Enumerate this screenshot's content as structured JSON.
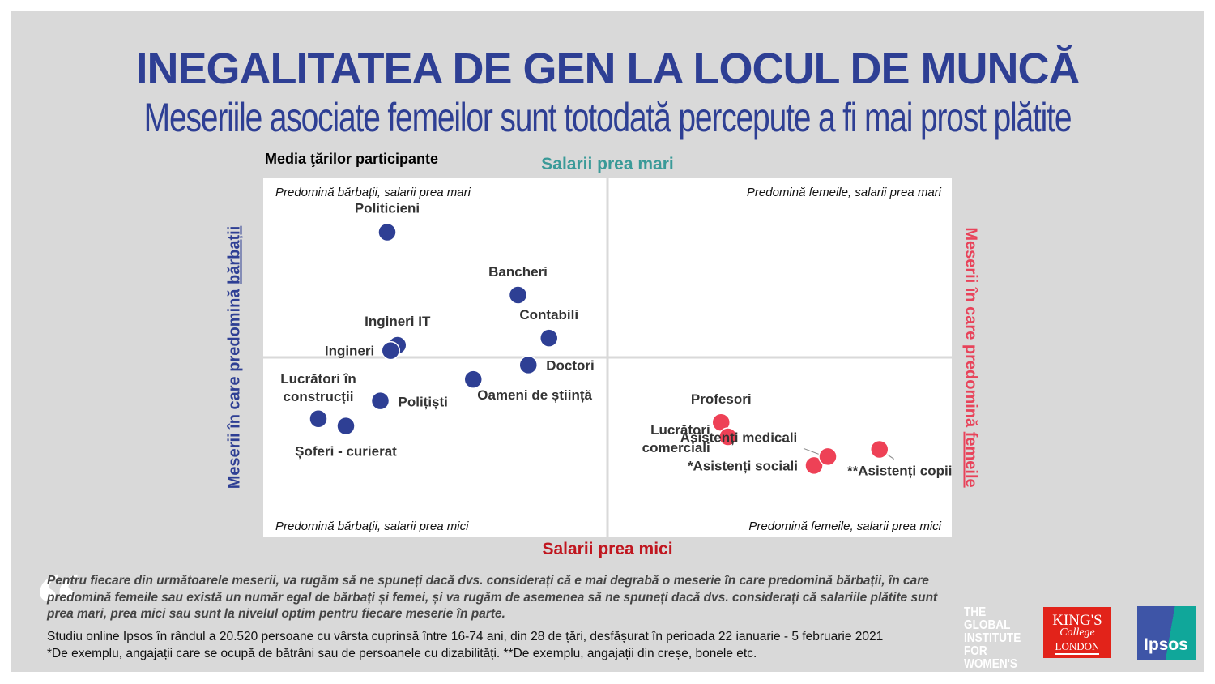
{
  "header": {
    "title": "INEGALITATEA DE GEN LA LOCUL DE MUNCĂ",
    "subtitle": "Meseriile asociate femeilor sunt totodată percepute a fi mai prost plătite"
  },
  "chart_data": {
    "type": "scatter",
    "title": "Media ţărilor participante",
    "xlabel_left": "Meserii în care predomină",
    "xlabel_left_emph": "bărbații",
    "xlabel_right": "Meserii în care predomină",
    "xlabel_right_emph": "femeile",
    "ylabel_top": "Salarii prea mari",
    "ylabel_bottom": "Salarii prea mici",
    "xlim": [
      -1,
      1
    ],
    "ylim": [
      -1,
      1
    ],
    "grid": false,
    "quadrants": {
      "top_left": "Predomină bărbații, salarii prea mari",
      "top_right": "Predomină femeile, salarii prea mari",
      "bottom_left": "Predomină bărbații, salarii prea mici",
      "bottom_right": "Predomină femeile, salarii prea mici"
    },
    "colors": {
      "male": "#2e3f94",
      "female": "#ee4156"
    },
    "points": [
      {
        "label": "Politicieni",
        "x": -0.64,
        "y": 0.7,
        "group": "male"
      },
      {
        "label": "Bancheri",
        "x": -0.26,
        "y": 0.35,
        "group": "male"
      },
      {
        "label": "Contabili",
        "x": -0.17,
        "y": 0.11,
        "group": "male"
      },
      {
        "label": "Ingineri IT",
        "x": -0.61,
        "y": 0.07,
        "group": "male"
      },
      {
        "label": "Ingineri",
        "x": -0.63,
        "y": 0.04,
        "group": "male"
      },
      {
        "label": "Doctori",
        "x": -0.23,
        "y": -0.04,
        "group": "male"
      },
      {
        "label": "Oameni de știință",
        "x": -0.39,
        "y": -0.12,
        "group": "male"
      },
      {
        "label": "Polițiști",
        "x": -0.66,
        "y": -0.24,
        "group": "male"
      },
      {
        "label": "Lucrători în construcții",
        "x": -0.84,
        "y": -0.34,
        "group": "male"
      },
      {
        "label": "Șoferi - curierat",
        "x": -0.76,
        "y": -0.38,
        "group": "male"
      },
      {
        "label": "Profesori",
        "x": 0.33,
        "y": -0.36,
        "group": "female"
      },
      {
        "label": "Lucrători comerciali",
        "x": 0.35,
        "y": -0.44,
        "group": "female"
      },
      {
        "label": "*Asistenți sociali",
        "x": 0.6,
        "y": -0.6,
        "group": "female"
      },
      {
        "label": "Asistenți medicali",
        "x": 0.64,
        "y": -0.55,
        "group": "female"
      },
      {
        "label": "**Asistenți copii",
        "x": 0.79,
        "y": -0.51,
        "group": "female"
      }
    ]
  },
  "footer": {
    "question": "Pentru fiecare din următoarele meserii, va rugăm să ne spuneți dacă dvs. considerați că e mai degrabă o meserie în care predomină bărbații, în care predomină femeile sau există un număr egal de bărbați și femei, și va rugăm de asemenea să ne spuneți dacă dvs. considerați că salariile plătite sunt prea mari, prea mici sau sunt la nivelul optim pentru fiecare meserie în parte.",
    "study": "Studiu online Ipsos în rândul a 20.520 persoane cu vârsta cuprinsă între 16-74 ani, din 28 de țări, desfășurat în perioada 22 ianuarie - 5 februarie 2021",
    "notes": "*De exemplu, angajații care se ocupă de bătrâni sau de persoanele cu dizabilități. **De exemplu, angajații din creșe, bonele etc."
  },
  "logos": {
    "global_institute": "THE GLOBAL INSTITUTE FOR WOMEN'S LEADERSHIP",
    "kings_college": "KING'S College LONDON",
    "ipsos": "Ipsos"
  }
}
